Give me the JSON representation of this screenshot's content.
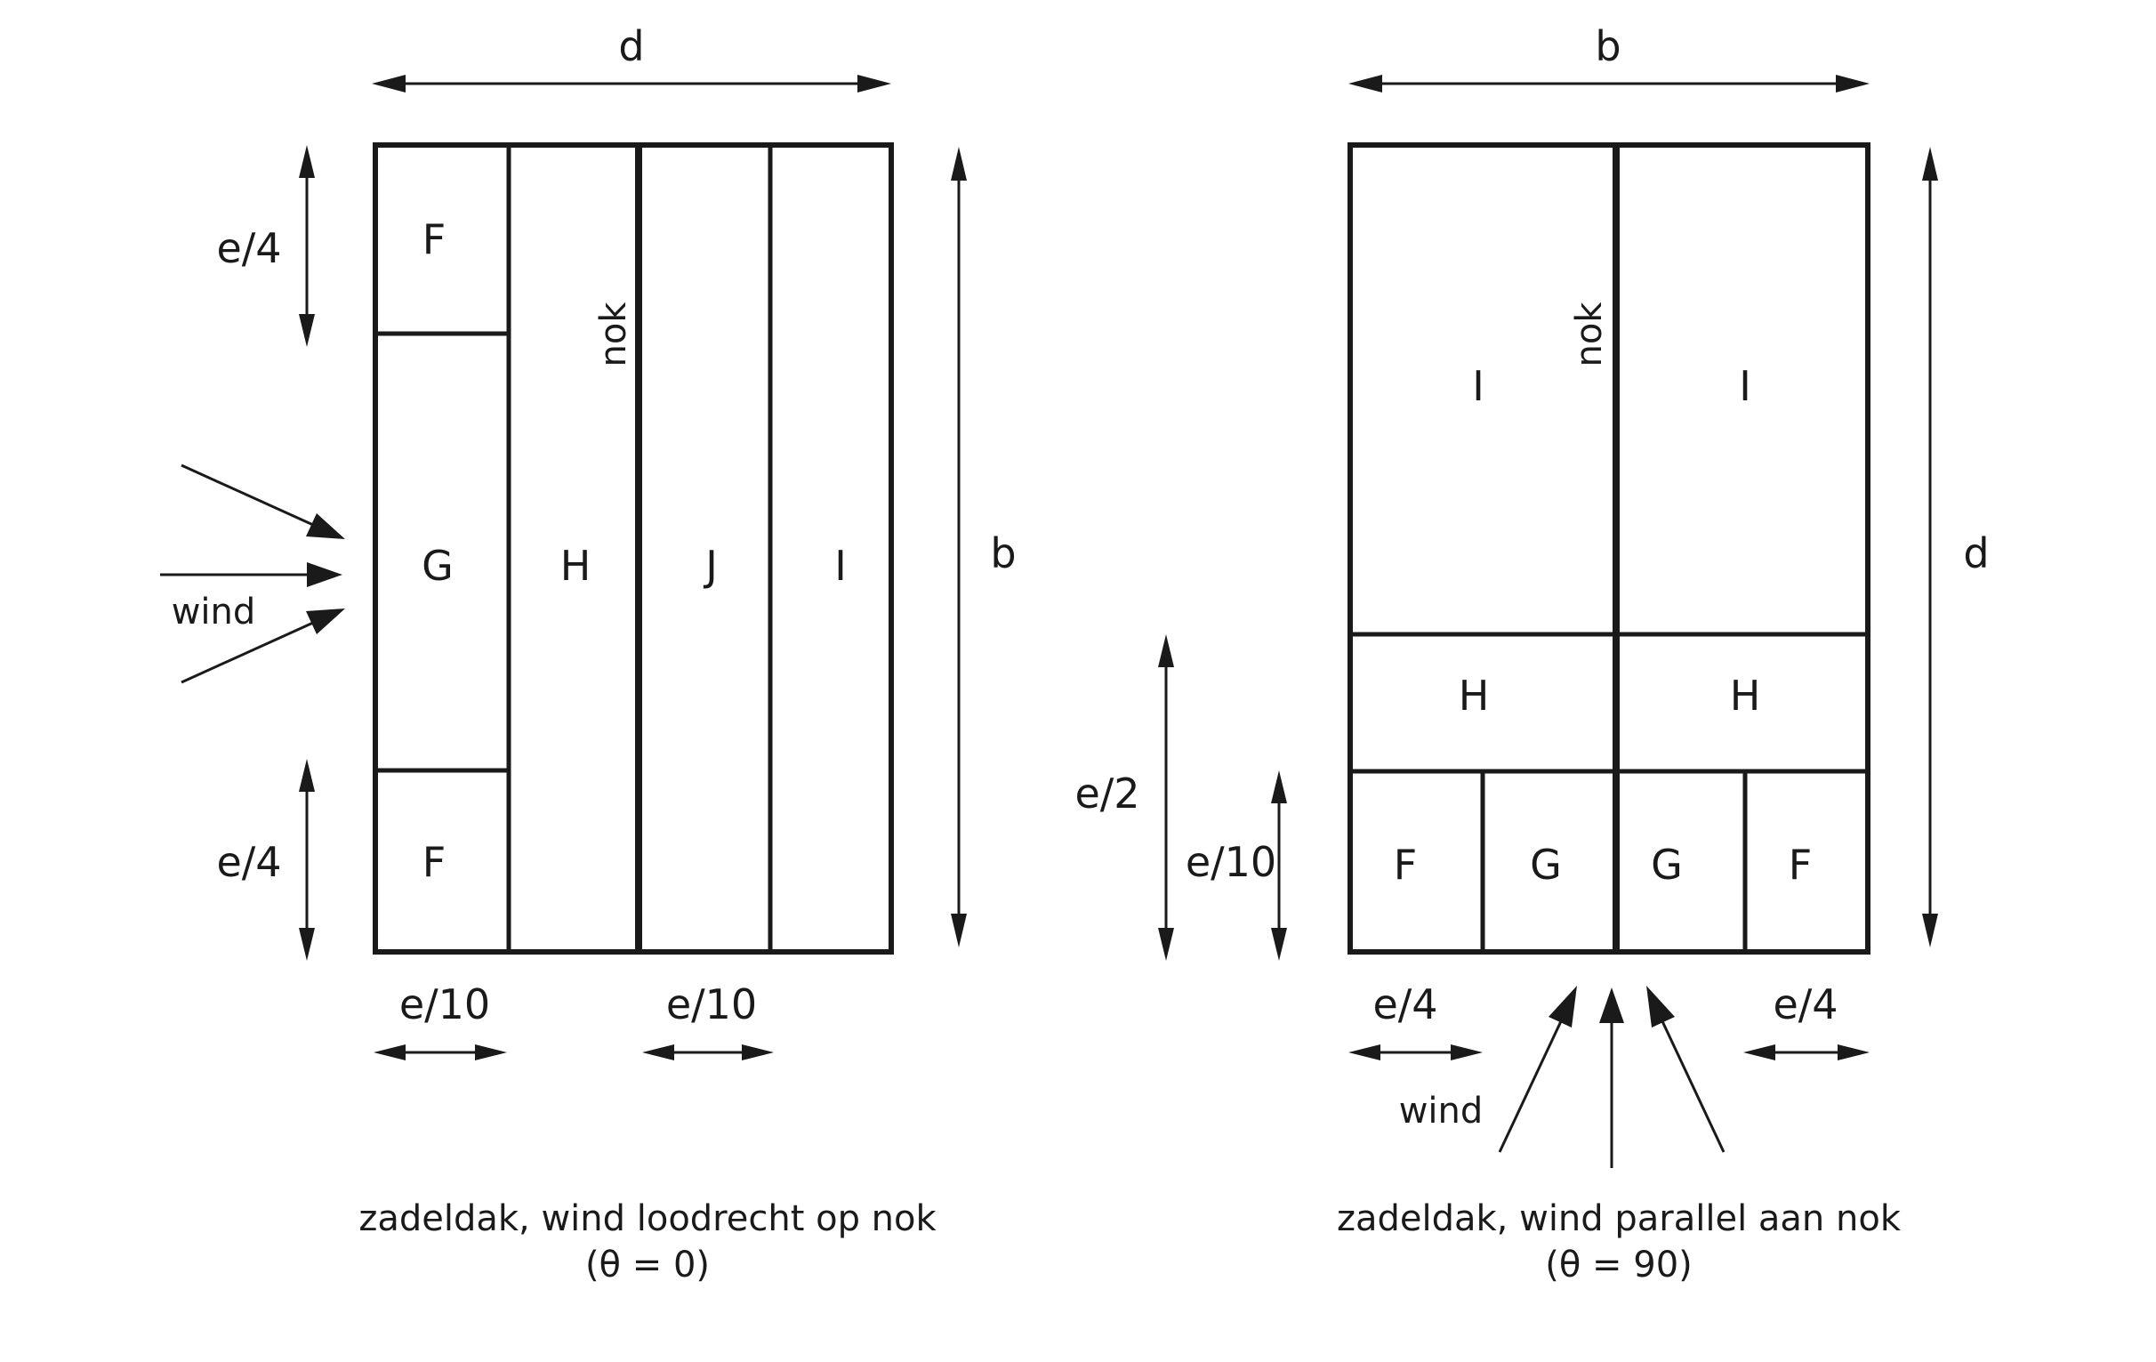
{
  "diagram_left": {
    "dim_top": "d",
    "dim_side": "b",
    "dim_top_band": "e/4",
    "dim_bottom_band": "e/4",
    "dim_strip_1": "e/10",
    "dim_strip_2": "e/10",
    "ridge_label": "nok",
    "wind_label": "wind",
    "zones": {
      "f_top": "F",
      "g": "G",
      "f_bottom": "F",
      "h": "H",
      "j": "J",
      "i": "I"
    },
    "caption_line1": "zadeldak, wind loodrecht op nok",
    "caption_line2": "(θ = 0)"
  },
  "diagram_right": {
    "dim_top": "b",
    "dim_side": "d",
    "dim_e2": "e/2",
    "dim_e10": "e/10",
    "dim_left_band": "e/4",
    "dim_right_band": "e/4",
    "ridge_label": "nok",
    "wind_label": "wind",
    "zones": {
      "i_left": "I",
      "i_right": "I",
      "h_left": "H",
      "h_right": "H",
      "f_left": "F",
      "g_left": "G",
      "g_right": "G",
      "f_right": "F"
    },
    "caption_line1": "zadeldak, wind parallel aan nok",
    "caption_line2": "(θ = 90)"
  }
}
